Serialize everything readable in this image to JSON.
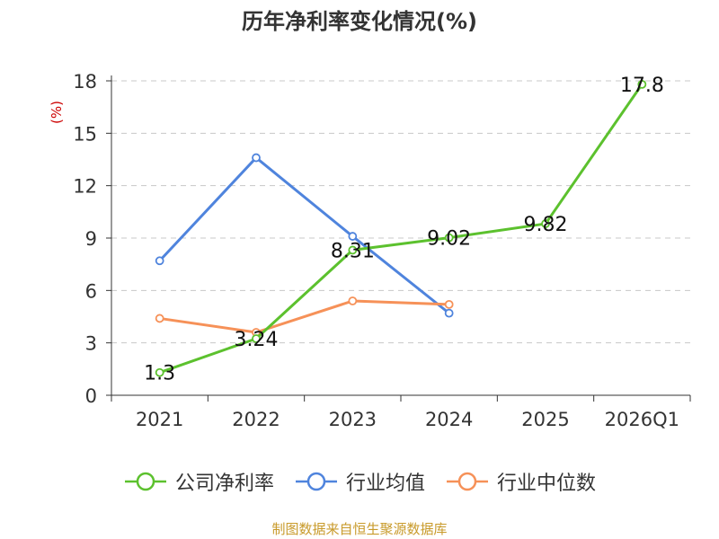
{
  "chart_data": {
    "type": "line",
    "title": "历年净利率变化情况(%)",
    "ylabel": "(%)",
    "categories": [
      "2021",
      "2022",
      "2023",
      "2024",
      "2025",
      "2026Q1"
    ],
    "yticks": [
      "0",
      "3",
      "6",
      "9",
      "12",
      "15",
      "18"
    ],
    "ylim": [
      0,
      18
    ],
    "grid": true,
    "legend_position": "bottom",
    "series": [
      {
        "name": "公司净利率",
        "color": "#5cc12e",
        "values": [
          1.3,
          3.24,
          8.31,
          9.02,
          9.82,
          17.8
        ],
        "labels": [
          "1.3",
          "3.24",
          "8.31",
          "9.02",
          "9.82",
          "17.8"
        ]
      },
      {
        "name": "行业均值",
        "color": "#4f84dd",
        "values": [
          7.7,
          13.6,
          9.1,
          4.7,
          null,
          null
        ]
      },
      {
        "name": "行业中位数",
        "color": "#f69158",
        "values": [
          4.4,
          3.6,
          5.4,
          5.2,
          null,
          null
        ]
      }
    ]
  },
  "source": {
    "text": "制图数据来自恒生聚源数据库",
    "color": "#c89a2a"
  }
}
